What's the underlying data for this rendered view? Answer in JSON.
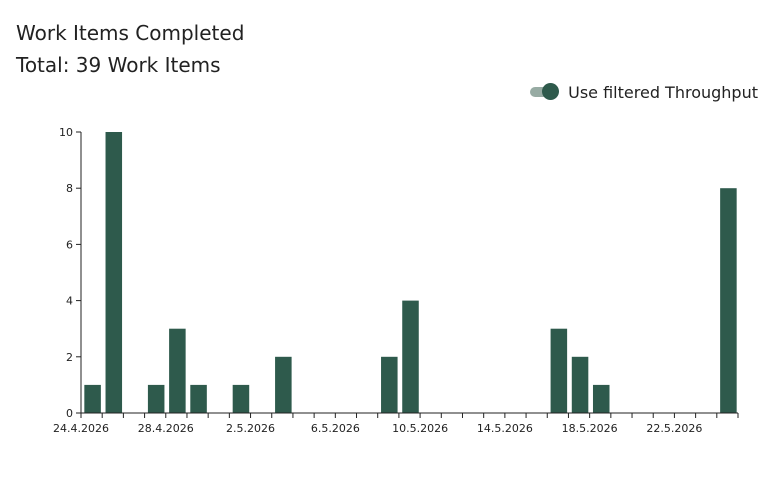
{
  "header": {
    "title": "Work Items Completed",
    "subtitle": "Total: 39 Work Items"
  },
  "toggle": {
    "label": "Use filtered Throughput",
    "on": true
  },
  "colors": {
    "bar": "#2e5a4c",
    "toggle_track": "#97aba3",
    "toggle_thumb": "#2e5a4c",
    "axis": "#222222"
  },
  "chart_data": {
    "type": "bar",
    "x": [
      "24.4.2026",
      "25.4.2026",
      "26.4.2026",
      "27.4.2026",
      "28.4.2026",
      "29.4.2026",
      "30.4.2026",
      "1.5.2026",
      "2.5.2026",
      "3.5.2026",
      "4.5.2026",
      "5.5.2026",
      "6.5.2026",
      "7.5.2026",
      "8.5.2026",
      "9.5.2026",
      "10.5.2026",
      "11.5.2026",
      "12.5.2026",
      "13.5.2026",
      "14.5.2026",
      "15.5.2026",
      "16.5.2026",
      "17.5.2026",
      "18.5.2026",
      "19.5.2026",
      "20.5.2026",
      "21.5.2026",
      "22.5.2026",
      "23.5.2026",
      "24.5.2026"
    ],
    "values": [
      1,
      10,
      0,
      1,
      3,
      1,
      0,
      1,
      0,
      2,
      0,
      0,
      0,
      0,
      2,
      4,
      0,
      0,
      0,
      0,
      0,
      0,
      3,
      2,
      1,
      0,
      0,
      0,
      0,
      0,
      8
    ],
    "x_tick_labels": [
      "24.4.2026",
      "28.4.2026",
      "2.5.2026",
      "6.5.2026",
      "10.5.2026",
      "14.5.2026",
      "18.5.2026",
      "22.5.2026"
    ],
    "y_ticks": [
      0,
      2,
      4,
      6,
      8,
      10
    ],
    "ylim": [
      0,
      10
    ],
    "title": "",
    "xlabel": "",
    "ylabel": "",
    "grid": false
  }
}
